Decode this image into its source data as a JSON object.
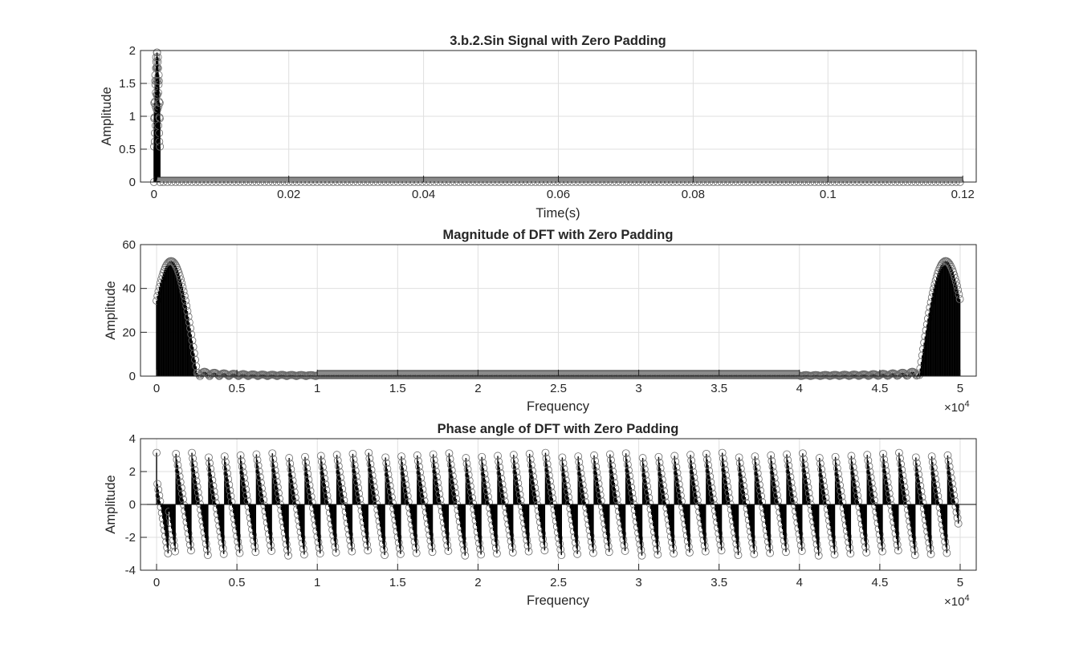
{
  "colors": {
    "marker": "#000000",
    "axis": "#262626",
    "grid": "#dfdfdf",
    "background": "#ffffff"
  },
  "chart_data": [
    {
      "type": "stem",
      "title": "3.b.2.Sin Signal with Zero Padding",
      "xlabel": "Time(s)",
      "ylabel": "Amplitude",
      "xlim": [
        -0.002,
        0.122
      ],
      "ylim": [
        0,
        2
      ],
      "xticks": [
        0,
        0.02,
        0.04,
        0.06,
        0.08,
        0.1,
        0.12
      ],
      "xtick_labels": [
        "0",
        "0.02",
        "0.04",
        "0.06",
        "0.08",
        "0.1",
        "0.12"
      ],
      "yticks": [
        0,
        0.5,
        1,
        1.5,
        2
      ],
      "ytick_labels": [
        "0",
        "0.5",
        "1",
        "1.5",
        "2"
      ],
      "exponent_label": "",
      "grid": true,
      "marker": "circle",
      "signal": {
        "kind": "sin_pulse",
        "x_start": 0,
        "x_end": 0.0009,
        "peak": 2,
        "num_points": 46,
        "zero_pad_to": 0.12
      }
    },
    {
      "type": "stem",
      "title": "Magnitude of DFT with Zero Padding",
      "xlabel": "Frequency",
      "ylabel": "Amplitude",
      "xlim": [
        -1000,
        51000
      ],
      "ylim": [
        0,
        60
      ],
      "xticks": [
        0,
        5000,
        10000,
        15000,
        20000,
        25000,
        30000,
        35000,
        40000,
        45000,
        50000
      ],
      "xtick_labels": [
        "0",
        "0.5",
        "1",
        "1.5",
        "2",
        "2.5",
        "3",
        "3.5",
        "4",
        "4.5",
        "5"
      ],
      "yticks": [
        0,
        20,
        40,
        60
      ],
      "ytick_labels": [
        "0",
        "20",
        "40",
        "60"
      ],
      "exponent_label": "×10",
      "exponent_power": "4",
      "grid": true,
      "marker": "circle",
      "signal": {
        "kind": "sinc_magnitude",
        "x_start": 0,
        "x_end": 50000,
        "main_lobe_peak": 52.5,
        "main_lobe_center": 900,
        "main_lobe_width": 1650,
        "sidelobe_visible_until": 10000
      }
    },
    {
      "type": "stem",
      "title": "Phase angle of DFT with Zero Padding",
      "xlabel": "Frequency",
      "ylabel": "Amplitude",
      "xlim": [
        -1000,
        51000
      ],
      "ylim": [
        -4,
        4
      ],
      "xticks": [
        0,
        5000,
        10000,
        15000,
        20000,
        25000,
        30000,
        35000,
        40000,
        45000,
        50000
      ],
      "xtick_labels": [
        "0",
        "0.5",
        "1",
        "1.5",
        "2",
        "2.5",
        "3",
        "3.5",
        "4",
        "4.5",
        "5"
      ],
      "yticks": [
        -4,
        -2,
        0,
        2,
        4
      ],
      "ytick_labels": [
        "-4",
        "-2",
        "0",
        "2",
        "4"
      ],
      "exponent_label": "×10",
      "exponent_power": "4",
      "grid": true,
      "marker": "circle",
      "signal": {
        "kind": "phase_sawtooth",
        "x_start": 0,
        "x_end": 49900,
        "wrap_period": 1000,
        "min": -3.1416,
        "max": 3.1416,
        "first_point": 3.1416,
        "last_value": -1.6
      }
    }
  ]
}
